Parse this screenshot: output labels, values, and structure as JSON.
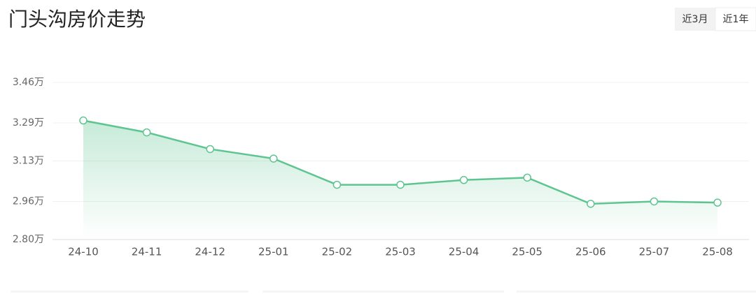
{
  "chart_data": {
    "type": "line",
    "title": "门头沟房价走势",
    "categories": [
      "24-10",
      "24-11",
      "24-12",
      "25-01",
      "25-02",
      "25-03",
      "25-04",
      "25-05",
      "25-06",
      "25-07",
      "25-08"
    ],
    "values": [
      3.3,
      3.25,
      3.18,
      3.14,
      3.03,
      3.03,
      3.05,
      3.06,
      2.95,
      2.96,
      2.955
    ],
    "color": "#5ec591",
    "ylim": [
      2.8,
      3.46
    ],
    "yticks": [
      {
        "value": 2.8,
        "label": "2.80万"
      },
      {
        "value": 2.96,
        "label": "2.96万"
      },
      {
        "value": 3.13,
        "label": "3.13万"
      },
      {
        "value": 3.29,
        "label": "3.29万"
      },
      {
        "value": 3.46,
        "label": "3.46万"
      }
    ],
    "grid": true
  },
  "controls": {
    "buttons": [
      "近3月",
      "近1年"
    ]
  }
}
